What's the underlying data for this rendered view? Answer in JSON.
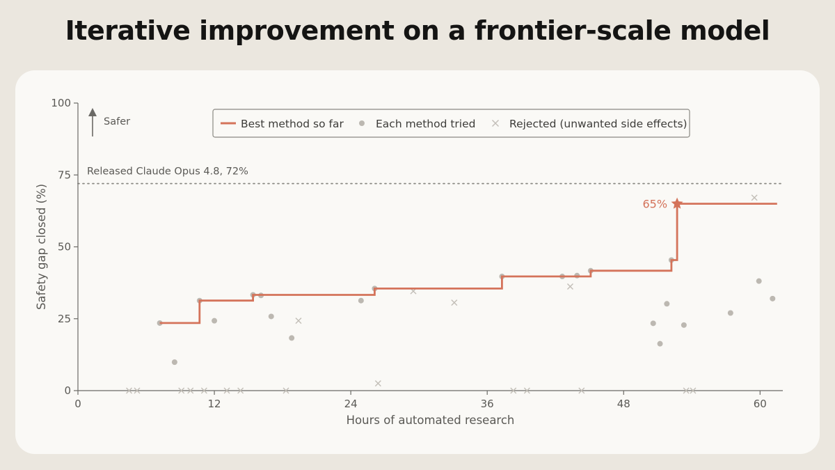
{
  "title": "Iterative improvement on a frontier-scale model",
  "colors": {
    "background": "#ebe7df",
    "card": "#faf9f6",
    "best": "#d4735a",
    "tried": "#bcb8b1",
    "rejected": "#c2beb7",
    "axis": "#6b6a66",
    "text": "#5a5955"
  },
  "chart_data": {
    "type": "scatter",
    "title": "Iterative improvement on a frontier-scale model",
    "xlabel": "Hours of automated research",
    "ylabel": "Safety gap closed (%)",
    "xlim": [
      0,
      62
    ],
    "ylim": [
      0,
      100
    ],
    "xticks": [
      0,
      12,
      24,
      36,
      48,
      60
    ],
    "yticks": [
      0,
      25,
      50,
      75,
      100
    ],
    "grid": false,
    "legend_position": "top-center",
    "legend": [
      {
        "key": "best",
        "label": "Best method so far"
      },
      {
        "key": "tried",
        "label": "Each method tried"
      },
      {
        "key": "rejected",
        "label": "Rejected (unwanted side effects)"
      }
    ],
    "direction_label": "Safer",
    "reference_line": {
      "y": 72,
      "label": "Released Claude Opus 4.8, 72%"
    },
    "final_label": {
      "x": 52.7,
      "y": 65,
      "text": "65%"
    },
    "series": [
      {
        "key": "best",
        "name": "Best method so far",
        "style": "step",
        "points": [
          [
            7.2,
            23.5
          ],
          [
            10.7,
            23.5
          ],
          [
            10.7,
            31.3
          ],
          [
            15.4,
            31.3
          ],
          [
            15.4,
            33.3
          ],
          [
            26.1,
            33.3
          ],
          [
            26.1,
            35.5
          ],
          [
            37.3,
            35.5
          ],
          [
            37.3,
            39.7
          ],
          [
            45.1,
            39.7
          ],
          [
            45.1,
            41.7
          ],
          [
            52.2,
            41.7
          ],
          [
            52.2,
            45.4
          ],
          [
            52.7,
            45.4
          ],
          [
            52.7,
            65
          ],
          [
            61.5,
            65
          ]
        ]
      },
      {
        "key": "tried",
        "name": "Each method tried",
        "style": "dots",
        "points": [
          [
            7.2,
            23.5
          ],
          [
            8.5,
            9.9
          ],
          [
            10.7,
            31.3
          ],
          [
            12.0,
            24.3
          ],
          [
            15.4,
            33.3
          ],
          [
            16.1,
            33.1
          ],
          [
            17.0,
            25.8
          ],
          [
            18.8,
            18.3
          ],
          [
            24.9,
            31.3
          ],
          [
            26.1,
            35.5
          ],
          [
            37.3,
            39.7
          ],
          [
            42.6,
            39.7
          ],
          [
            43.9,
            40.0
          ],
          [
            45.1,
            41.7
          ],
          [
            50.6,
            23.4
          ],
          [
            51.2,
            16.3
          ],
          [
            51.8,
            30.2
          ],
          [
            52.2,
            45.4
          ],
          [
            53.3,
            22.8
          ],
          [
            57.4,
            27.0
          ],
          [
            59.9,
            38.1
          ],
          [
            61.1,
            32.0
          ]
        ]
      },
      {
        "key": "rejected",
        "name": "Rejected (unwanted side effects)",
        "style": "x",
        "points": [
          [
            4.5,
            0
          ],
          [
            5.2,
            0
          ],
          [
            9.1,
            0
          ],
          [
            9.9,
            0
          ],
          [
            11.1,
            0
          ],
          [
            13.1,
            0
          ],
          [
            14.3,
            0
          ],
          [
            18.3,
            0
          ],
          [
            19.4,
            24.3
          ],
          [
            26.4,
            2.5
          ],
          [
            29.5,
            34.6
          ],
          [
            33.1,
            30.6
          ],
          [
            38.3,
            0
          ],
          [
            39.5,
            0
          ],
          [
            43.3,
            36.2
          ],
          [
            44.3,
            0
          ],
          [
            53.5,
            0
          ],
          [
            54.1,
            0
          ],
          [
            59.5,
            67.1
          ]
        ]
      }
    ]
  }
}
